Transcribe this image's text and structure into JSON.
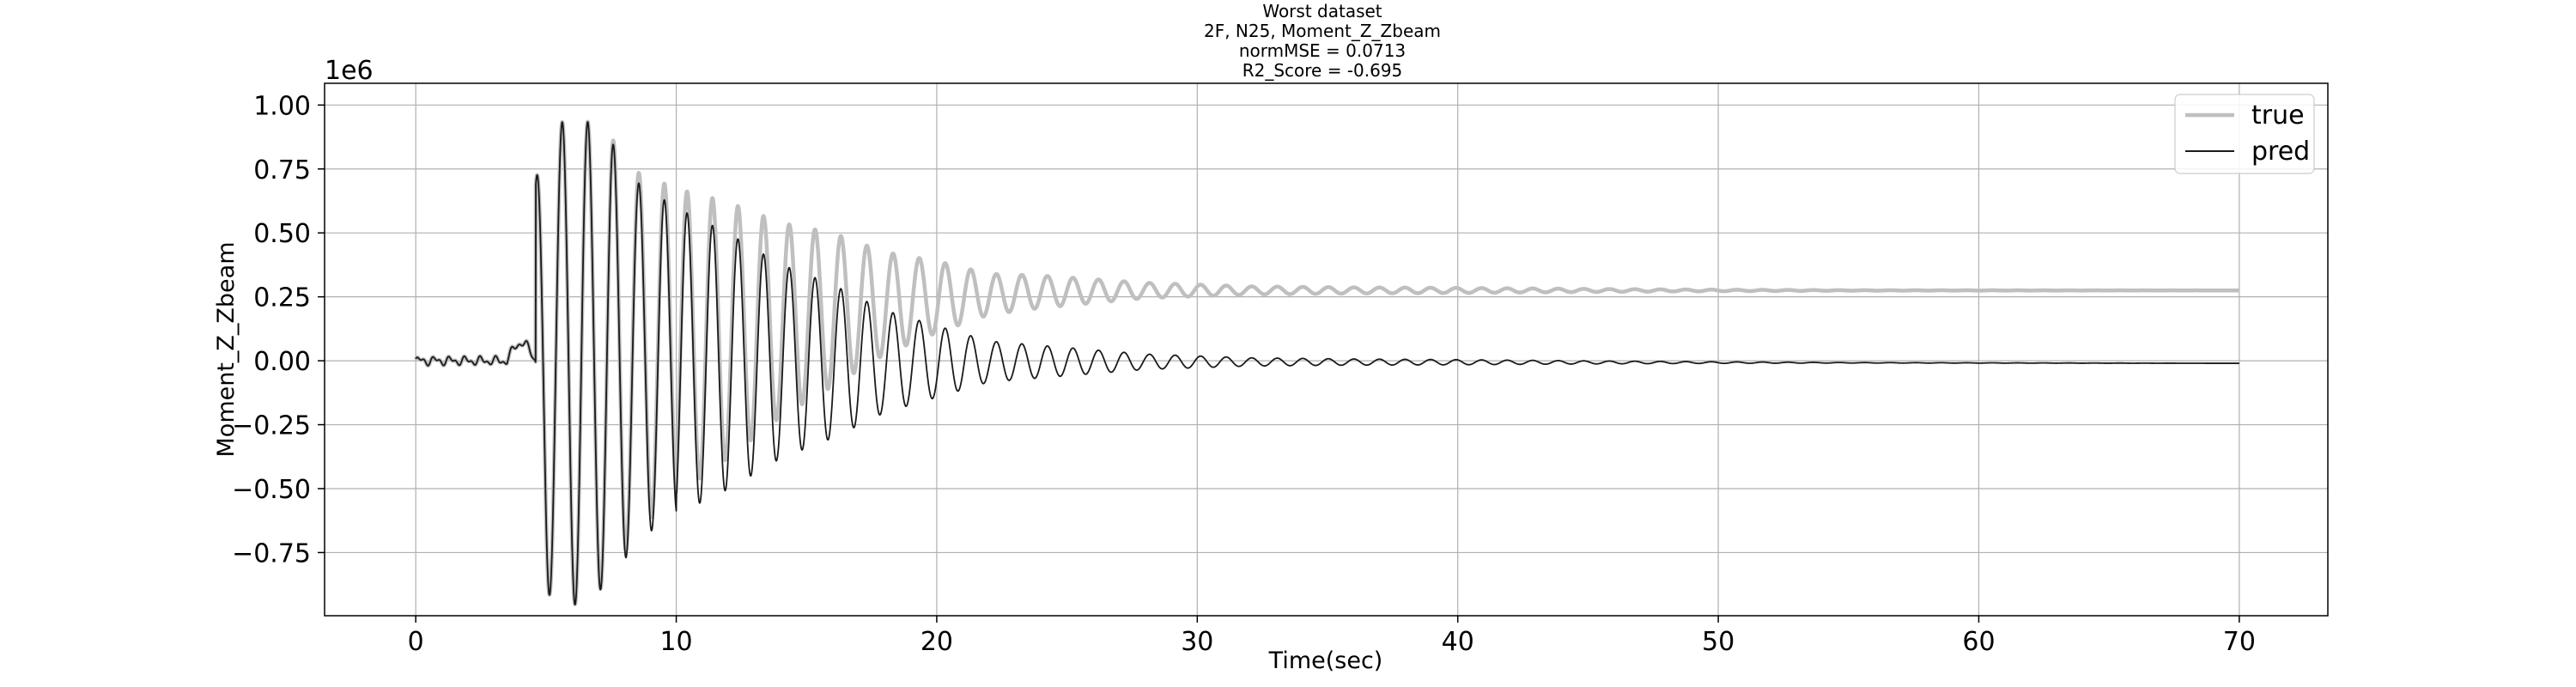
{
  "chart_data": {
    "type": "line",
    "title": [
      "Worst dataset",
      "2F, N25, Moment_Z_Zbeam",
      "normMSE = 0.0713",
      "R2_Score = -0.695"
    ],
    "xlabel": "Time(sec)",
    "ylabel": "Moment_Z_Zbeam",
    "y_offset_label": "1e6",
    "xlim": [
      -3.5,
      73.4
    ],
    "ylim": [
      -0.997,
      1.085
    ],
    "x_ticks": [
      0,
      10,
      20,
      30,
      40,
      50,
      60,
      70
    ],
    "x_tick_labels": [
      "0",
      "10",
      "20",
      "30",
      "40",
      "50",
      "60",
      "70"
    ],
    "y_ticks": [
      1.0,
      0.75,
      0.5,
      0.25,
      0.0,
      -0.25,
      -0.5,
      -0.75
    ],
    "y_tick_labels": [
      "1.00",
      "0.75",
      "0.50",
      "0.25",
      "0.00",
      "−0.25",
      "−0.50",
      "−0.75"
    ],
    "grid": true,
    "legend_position": "top-right",
    "series": [
      {
        "name": "true",
        "color": "#bfbfbf",
        "envelope_points": [
          [
            0,
            0.0
          ],
          [
            3.6,
            0.01
          ],
          [
            4.0,
            0.1
          ],
          [
            4.6,
            0.7
          ],
          [
            5.0,
            0.91
          ],
          [
            6.3,
            0.96
          ],
          [
            7.5,
            0.86
          ],
          [
            8.5,
            0.7
          ],
          [
            10.0,
            0.6
          ],
          [
            12.0,
            0.5
          ],
          [
            14.0,
            0.38
          ],
          [
            16.0,
            0.3
          ],
          [
            18.0,
            0.2
          ],
          [
            20.0,
            0.14
          ],
          [
            22.0,
            0.08
          ],
          [
            25.0,
            0.055
          ],
          [
            28.0,
            0.03
          ],
          [
            32.0,
            0.016
          ],
          [
            36.0,
            0.012
          ],
          [
            40.0,
            0.01
          ],
          [
            45.0,
            0.006
          ],
          [
            50.0,
            0.003
          ],
          [
            55.0,
            0.001
          ],
          [
            70.0,
            0.0
          ]
        ],
        "baseline_points": [
          [
            0,
            0.0
          ],
          [
            4.5,
            0.0
          ],
          [
            7.0,
            0.0
          ],
          [
            9.0,
            0.05
          ],
          [
            12.0,
            0.12
          ],
          [
            16.0,
            0.2
          ],
          [
            20.0,
            0.25
          ],
          [
            24.0,
            0.27
          ],
          [
            28.0,
            0.275
          ],
          [
            70.0,
            0.275
          ]
        ]
      },
      {
        "name": "pred",
        "color": "#1a1a1a",
        "envelope_points": [
          [
            0,
            0.0
          ],
          [
            3.6,
            0.01
          ],
          [
            4.0,
            0.1
          ],
          [
            4.6,
            0.7
          ],
          [
            5.0,
            0.91
          ],
          [
            6.3,
            0.96
          ],
          [
            7.5,
            0.86
          ],
          [
            8.5,
            0.7
          ],
          [
            10.0,
            0.6
          ],
          [
            12.0,
            0.5
          ],
          [
            14.0,
            0.38
          ],
          [
            16.0,
            0.3
          ],
          [
            18.0,
            0.2
          ],
          [
            20.0,
            0.14
          ],
          [
            22.0,
            0.08
          ],
          [
            25.0,
            0.055
          ],
          [
            28.0,
            0.03
          ],
          [
            32.0,
            0.016
          ],
          [
            36.0,
            0.012
          ],
          [
            40.0,
            0.01
          ],
          [
            45.0,
            0.006
          ],
          [
            50.0,
            0.003
          ],
          [
            55.0,
            0.001
          ],
          [
            70.0,
            0.0
          ]
        ],
        "baseline_points": [
          [
            0,
            0.0
          ],
          [
            70.0,
            -0.01
          ]
        ]
      }
    ]
  }
}
